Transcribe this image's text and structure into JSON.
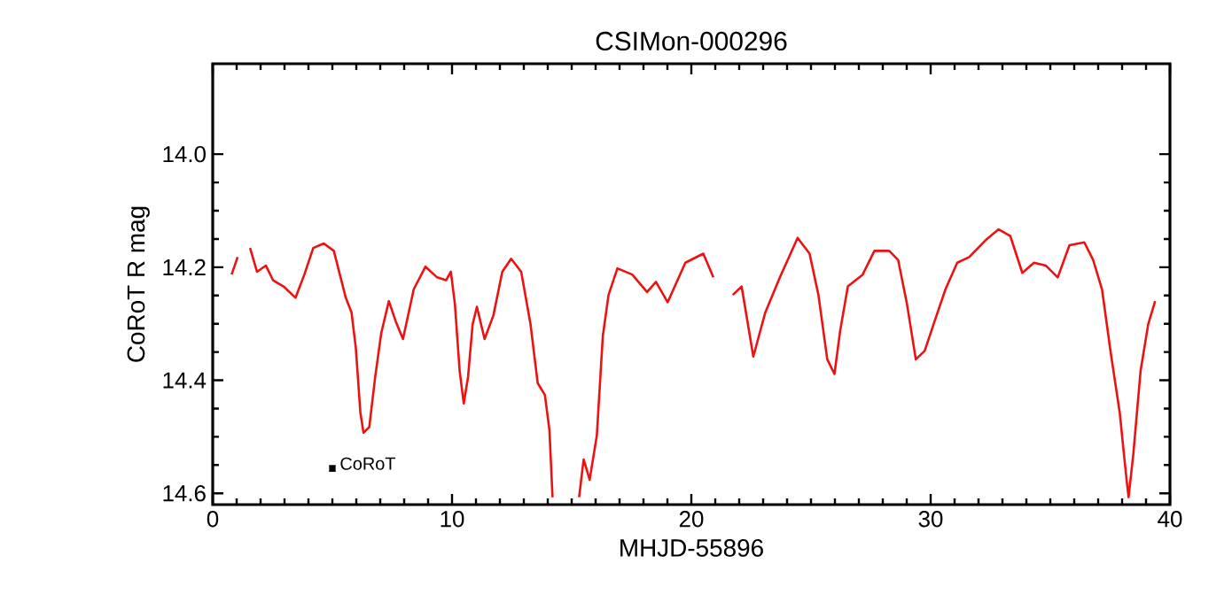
{
  "chart_data": {
    "type": "line",
    "title": "CSIMon-000296",
    "xlabel": "MHJD-55896",
    "ylabel": "CoRoT R mag",
    "xlim": [
      0,
      40
    ],
    "ylim": [
      14.62,
      13.84
    ],
    "xticks": [
      0,
      10,
      20,
      30,
      40
    ],
    "yticks": [
      {
        "value": 14.0,
        "label": "14.0"
      },
      {
        "value": 14.2,
        "label": "14.2"
      },
      {
        "value": 14.4,
        "label": "14.4"
      },
      {
        "value": 14.6,
        "label": "14.6"
      }
    ],
    "grid": false,
    "marker": "none",
    "line_style": "solid",
    "series": [
      {
        "color": "#ee1111",
        "x": [
          0.79,
          1.04,
          1.3,
          1.56,
          1.85,
          2.22,
          2.52,
          2.96,
          3.46,
          3.83,
          4.2,
          4.64,
          5.06,
          5.56,
          5.8,
          5.98,
          6.17,
          6.3,
          6.54,
          6.79,
          7.04,
          7.36,
          7.65,
          7.95,
          8.4,
          8.89,
          9.38,
          9.75,
          9.95,
          10.12,
          10.32,
          10.49,
          10.67,
          10.86,
          11.04,
          11.36,
          11.73,
          12.1,
          12.47,
          12.89,
          13.28,
          13.58,
          13.88,
          14.07,
          14.2,
          14.8,
          15.31,
          15.5,
          15.75,
          16.05,
          16.3,
          16.54,
          16.91,
          17.53,
          18.15,
          18.52,
          19.01,
          19.75,
          20.5,
          20.92,
          21.3,
          21.73,
          22.1,
          22.59,
          23.09,
          23.7,
          24.44,
          24.94,
          25.31,
          25.68,
          25.98,
          26.22,
          26.54,
          27.16,
          27.65,
          28.27,
          28.64,
          29.01,
          29.38,
          29.75,
          30.12,
          30.62,
          31.11,
          31.61,
          32.35,
          32.84,
          33.33,
          33.83,
          34.32,
          34.81,
          35.31,
          35.8,
          36.42,
          36.79,
          37.16,
          37.53,
          37.9,
          38.15,
          38.27,
          38.47,
          38.77,
          39.09,
          39.38
        ],
        "values": [
          14.213,
          14.182,
          null,
          14.166,
          14.208,
          14.197,
          14.223,
          14.234,
          14.254,
          14.213,
          14.166,
          14.158,
          14.171,
          14.254,
          14.28,
          14.343,
          14.457,
          14.493,
          14.483,
          14.394,
          14.317,
          14.26,
          14.296,
          14.327,
          14.239,
          14.199,
          14.218,
          14.223,
          14.208,
          14.265,
          14.384,
          14.441,
          14.394,
          14.301,
          14.27,
          14.327,
          14.285,
          14.208,
          14.185,
          14.208,
          14.301,
          14.405,
          14.426,
          14.488,
          14.607,
          null,
          14.607,
          14.54,
          14.576,
          14.498,
          14.322,
          14.249,
          14.202,
          14.213,
          14.244,
          14.226,
          14.262,
          14.192,
          14.176,
          14.218,
          null,
          14.249,
          14.234,
          14.358,
          14.28,
          14.218,
          14.148,
          14.176,
          14.249,
          14.363,
          14.389,
          14.312,
          14.234,
          14.213,
          14.171,
          14.171,
          14.187,
          14.265,
          14.363,
          14.348,
          14.301,
          14.239,
          14.192,
          14.182,
          14.15,
          14.133,
          14.145,
          14.21,
          14.192,
          14.197,
          14.218,
          14.161,
          14.156,
          14.187,
          14.239,
          14.353,
          14.457,
          14.561,
          14.607,
          14.53,
          14.384,
          14.301,
          14.26
        ]
      },
      {
        "type": "scatter",
        "color": "#000000",
        "marker": "square",
        "x": [
          5.0
        ],
        "values": [
          14.556
        ],
        "errors": [
          0.005
        ]
      }
    ],
    "annotations": [
      {
        "text": "CoRoT",
        "x": 5.0,
        "y": 14.556
      }
    ]
  }
}
